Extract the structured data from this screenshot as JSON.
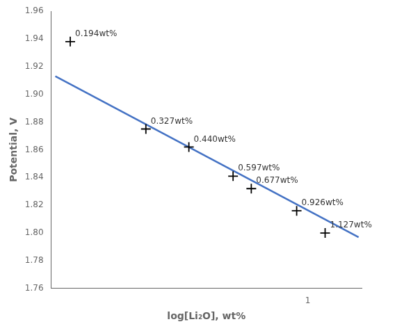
{
  "chart_data": {
    "type": "scatter",
    "xlabel": "log[Li₂O], wt%",
    "ylabel": "Potential, V",
    "log": "x",
    "grid": false,
    "xlim": [
      0.17,
      1.45
    ],
    "xticks": [
      1
    ],
    "ylim": [
      1.76,
      1.96
    ],
    "yticks": [
      1.76,
      1.78,
      {
        "value": 1.8,
        "label": "1.80"
      },
      1.82,
      1.84,
      1.86,
      1.88,
      {
        "value": 1.9,
        "label": "1.90"
      },
      1.92,
      1.94,
      1.96
    ],
    "series": [
      {
        "type": "line",
        "color": "#4472C4",
        "line_style": "solid",
        "x": [
          0.175,
          1.42
        ],
        "values": [
          1.913,
          1.797
        ]
      },
      {
        "type": "scatter",
        "color": "#000000",
        "marker": "+",
        "x": [
          0.194,
          0.327,
          0.44,
          0.597,
          0.677,
          0.926,
          1.127
        ],
        "values": [
          1.938,
          1.875,
          1.862,
          1.841,
          1.832,
          1.816,
          1.8
        ],
        "annotations": [
          "0.194wt%",
          "0.327wt%",
          "0.440wt%",
          "0.597wt%",
          "0.677wt%",
          "0.926wt%",
          "1.127wt%"
        ]
      }
    ]
  }
}
